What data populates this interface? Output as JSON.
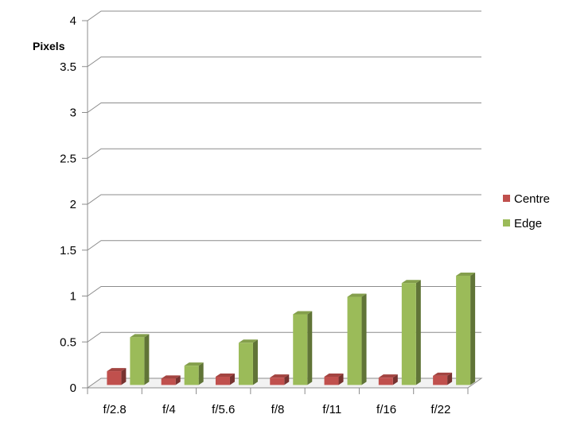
{
  "chart_data": {
    "type": "bar",
    "title": "",
    "xlabel": "",
    "ylabel": "Pixels",
    "ylim": [
      0,
      4
    ],
    "yticks": [
      0,
      0.5,
      1,
      1.5,
      2,
      2.5,
      3,
      3.5,
      4
    ],
    "grid": true,
    "legend_position": "right",
    "categories": [
      "f/2.8",
      "f/4",
      "f/5.6",
      "f/8",
      "f/11",
      "f/16",
      "f/22"
    ],
    "series": [
      {
        "name": "Centre",
        "color": "#c0504d",
        "values": [
          0.15,
          0.07,
          0.09,
          0.08,
          0.09,
          0.08,
          0.1
        ]
      },
      {
        "name": "Edge",
        "color": "#9bbb59",
        "values": [
          0.52,
          0.21,
          0.46,
          0.77,
          0.96,
          1.11,
          1.19
        ]
      }
    ]
  }
}
